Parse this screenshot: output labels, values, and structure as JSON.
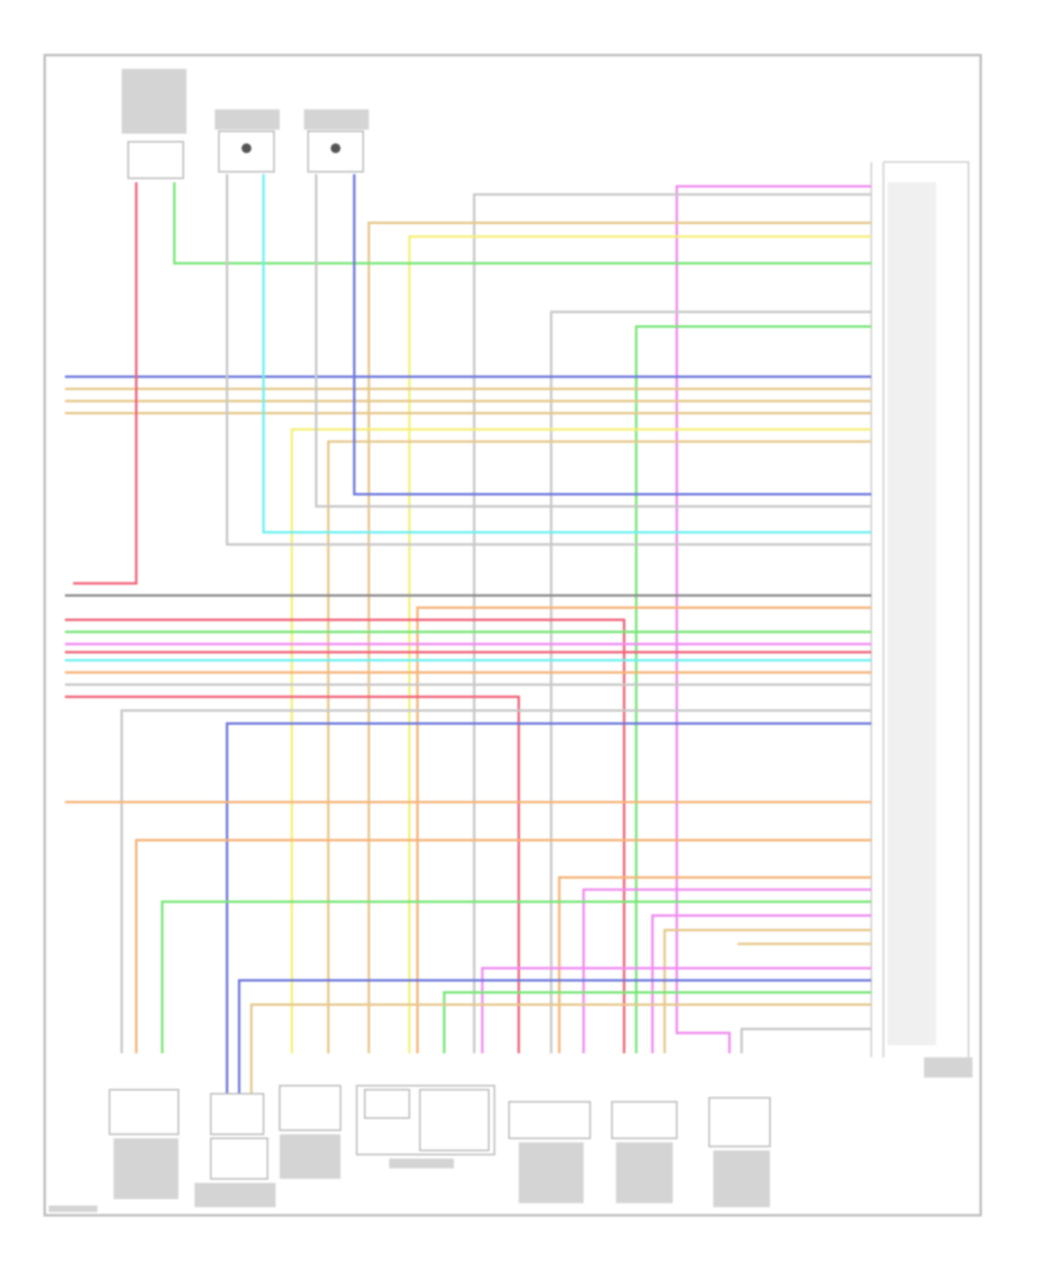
{
  "diagram": {
    "type": "wiring-diagram",
    "text_legible": false,
    "wire_colors": {
      "pink": "#f08cf0",
      "gray": "#c8c8c8",
      "tan": "#e6c88c",
      "yellow": "#f5f07a",
      "green": "#78e678",
      "blue": "#6e78dc",
      "cyan": "#6ef0f0",
      "red": "#f0647a",
      "orange": "#f5b478",
      "darkgray": "#8c8c8c",
      "frame": "#bdbdbd"
    }
  }
}
